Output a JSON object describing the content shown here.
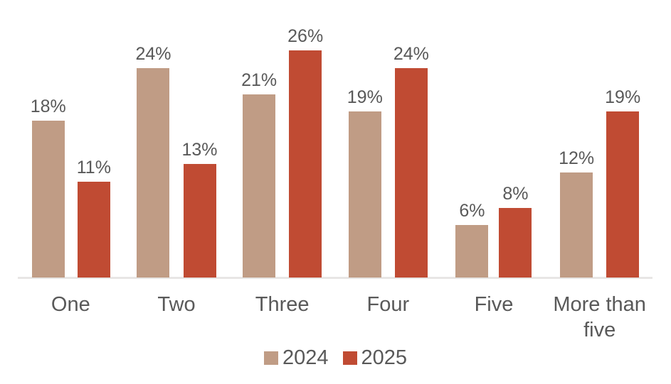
{
  "chart_data": {
    "type": "bar",
    "title": "",
    "xlabel": "",
    "ylabel": "",
    "categories": [
      "One",
      "Two",
      "Three",
      "Four",
      "Five",
      "More than five"
    ],
    "series": [
      {
        "name": "2024",
        "color": "#c09c85",
        "values": [
          18,
          24,
          21,
          19,
          6,
          12
        ],
        "labels": [
          "18%",
          "24%",
          "21%",
          "19%",
          "6%",
          "12%"
        ]
      },
      {
        "name": "2025",
        "color": "#c04b33",
        "values": [
          11,
          13,
          26,
          24,
          8,
          19
        ],
        "labels": [
          "11%",
          "13%",
          "26%",
          "24%",
          "8%",
          "19%"
        ]
      }
    ],
    "value_label_suffix": "%",
    "ylim": [
      0,
      30
    ],
    "grid": false,
    "y_axis_visible": false,
    "legend_position": "bottom",
    "axis_line_color": "#e8e6e5",
    "text_color": "#595959"
  }
}
